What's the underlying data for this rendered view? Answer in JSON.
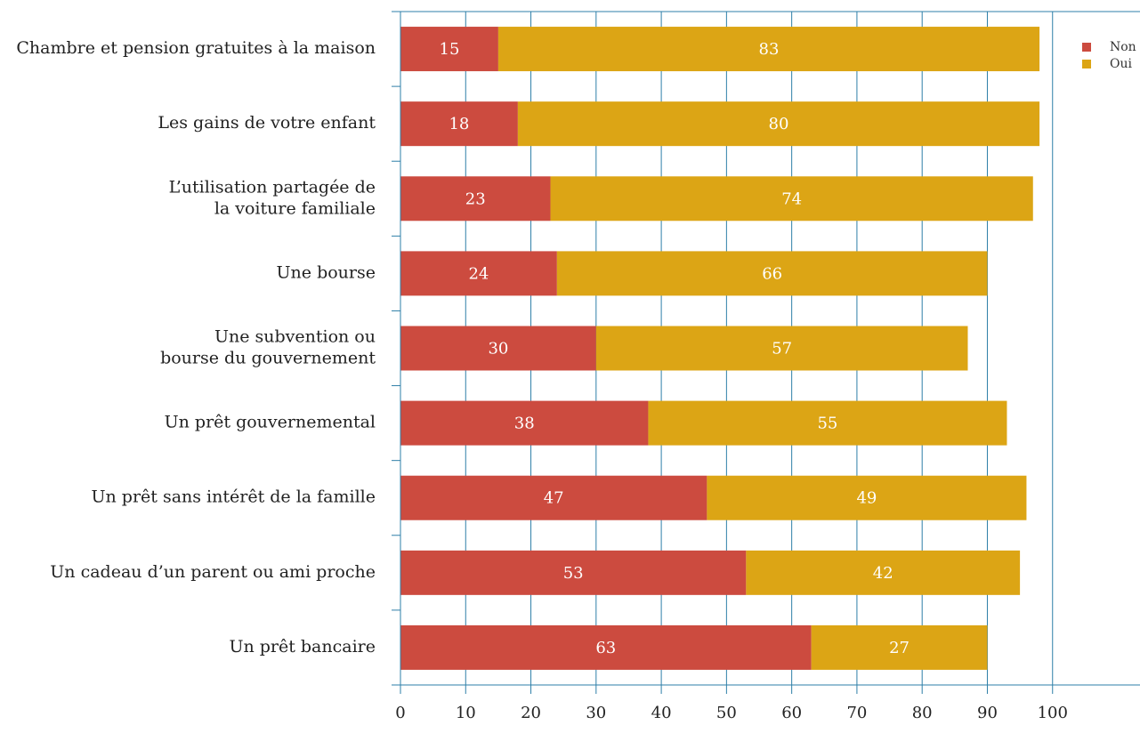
{
  "chart_data": {
    "type": "stacked-bar-horizontal",
    "categories": [
      [
        "Chambre et pension gratuites à la maison"
      ],
      [
        "Les gains de votre enfant"
      ],
      [
        "L’utilisation partagée de",
        "la voiture familiale"
      ],
      [
        "Une bourse"
      ],
      [
        "Une subvention ou",
        "bourse du gouvernement"
      ],
      [
        "Un prêt gouvernemental"
      ],
      [
        "Un prêt sans intérêt de la famille"
      ],
      [
        "Un cadeau d’un parent ou ami proche"
      ],
      [
        "Un prêt bancaire"
      ]
    ],
    "series": [
      {
        "name": "Non",
        "color": "#cc4b3f",
        "values": [
          15,
          18,
          23,
          24,
          30,
          38,
          47,
          53,
          63
        ]
      },
      {
        "name": "Oui",
        "color": "#dca515",
        "values": [
          83,
          80,
          74,
          66,
          57,
          55,
          49,
          42,
          27
        ]
      }
    ],
    "xlim": [
      0,
      113
    ],
    "xticks": [
      0,
      10,
      20,
      30,
      40,
      50,
      60,
      70,
      80,
      90,
      100
    ],
    "grid": true,
    "legend": "top-right"
  }
}
